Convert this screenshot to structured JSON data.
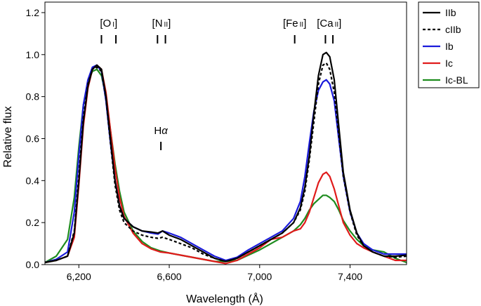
{
  "chart_data": {
    "type": "line",
    "title": "",
    "xlabel": "Wavelength (Å)",
    "ylabel": "Relative flux",
    "xlim": [
      6050,
      7650
    ],
    "ylim": [
      0,
      1.25
    ],
    "xticks": [
      6200,
      6600,
      7000,
      7400
    ],
    "xtick_labels": [
      "6,200",
      "6,600",
      "7,000",
      "7,400"
    ],
    "yticks": [
      0,
      0.2,
      0.4,
      0.6,
      0.8,
      1.0,
      1.2
    ],
    "ytick_labels": [
      "0.0",
      "0.2",
      "0.4",
      "0.6",
      "0.8",
      "1.0",
      "1.2"
    ],
    "legend_position": "top-right",
    "series": [
      {
        "name": "IIb",
        "color": "#000000",
        "dash": "solid",
        "points": [
          [
            6050,
            0.01
          ],
          [
            6100,
            0.02
          ],
          [
            6150,
            0.04
          ],
          [
            6180,
            0.15
          ],
          [
            6200,
            0.4
          ],
          [
            6220,
            0.68
          ],
          [
            6240,
            0.85
          ],
          [
            6260,
            0.93
          ],
          [
            6280,
            0.95
          ],
          [
            6300,
            0.93
          ],
          [
            6320,
            0.8
          ],
          [
            6340,
            0.6
          ],
          [
            6360,
            0.4
          ],
          [
            6380,
            0.28
          ],
          [
            6400,
            0.22
          ],
          [
            6440,
            0.18
          ],
          [
            6480,
            0.16
          ],
          [
            6520,
            0.155
          ],
          [
            6550,
            0.15
          ],
          [
            6570,
            0.16
          ],
          [
            6600,
            0.14
          ],
          [
            6650,
            0.12
          ],
          [
            6700,
            0.09
          ],
          [
            6750,
            0.06
          ],
          [
            6800,
            0.03
          ],
          [
            6850,
            0.015
          ],
          [
            6900,
            0.03
          ],
          [
            6950,
            0.06
          ],
          [
            7000,
            0.09
          ],
          [
            7050,
            0.12
          ],
          [
            7100,
            0.15
          ],
          [
            7150,
            0.2
          ],
          [
            7180,
            0.27
          ],
          [
            7200,
            0.37
          ],
          [
            7220,
            0.52
          ],
          [
            7240,
            0.72
          ],
          [
            7260,
            0.9
          ],
          [
            7280,
            1.0
          ],
          [
            7295,
            1.01
          ],
          [
            7310,
            0.99
          ],
          [
            7330,
            0.88
          ],
          [
            7350,
            0.66
          ],
          [
            7370,
            0.44
          ],
          [
            7400,
            0.26
          ],
          [
            7430,
            0.15
          ],
          [
            7460,
            0.09
          ],
          [
            7500,
            0.06
          ],
          [
            7550,
            0.04
          ],
          [
            7600,
            0.04
          ],
          [
            7650,
            0.045
          ]
        ]
      },
      {
        "name": "cIIb",
        "color": "#000000",
        "dash": "dotted",
        "points": [
          [
            6050,
            0.01
          ],
          [
            6100,
            0.02
          ],
          [
            6150,
            0.04
          ],
          [
            6180,
            0.16
          ],
          [
            6200,
            0.42
          ],
          [
            6220,
            0.7
          ],
          [
            6240,
            0.86
          ],
          [
            6260,
            0.93
          ],
          [
            6280,
            0.94
          ],
          [
            6300,
            0.92
          ],
          [
            6320,
            0.79
          ],
          [
            6340,
            0.58
          ],
          [
            6360,
            0.38
          ],
          [
            6380,
            0.26
          ],
          [
            6400,
            0.2
          ],
          [
            6440,
            0.16
          ],
          [
            6480,
            0.14
          ],
          [
            6520,
            0.13
          ],
          [
            6550,
            0.125
          ],
          [
            6570,
            0.13
          ],
          [
            6600,
            0.12
          ],
          [
            6650,
            0.1
          ],
          [
            6700,
            0.08
          ],
          [
            6750,
            0.05
          ],
          [
            6800,
            0.03
          ],
          [
            6850,
            0.015
          ],
          [
            6900,
            0.03
          ],
          [
            6950,
            0.06
          ],
          [
            7000,
            0.09
          ],
          [
            7050,
            0.12
          ],
          [
            7100,
            0.15
          ],
          [
            7150,
            0.2
          ],
          [
            7180,
            0.26
          ],
          [
            7200,
            0.35
          ],
          [
            7220,
            0.5
          ],
          [
            7240,
            0.68
          ],
          [
            7260,
            0.86
          ],
          [
            7280,
            0.95
          ],
          [
            7295,
            0.96
          ],
          [
            7310,
            0.93
          ],
          [
            7330,
            0.82
          ],
          [
            7350,
            0.62
          ],
          [
            7370,
            0.42
          ],
          [
            7400,
            0.25
          ],
          [
            7430,
            0.14
          ],
          [
            7460,
            0.09
          ],
          [
            7500,
            0.06
          ],
          [
            7550,
            0.04
          ],
          [
            7600,
            0.035
          ],
          [
            7650,
            0.04
          ]
        ]
      },
      {
        "name": "Ib",
        "color": "#1a1adb",
        "dash": "solid",
        "points": [
          [
            6050,
            0.01
          ],
          [
            6100,
            0.025
          ],
          [
            6150,
            0.06
          ],
          [
            6180,
            0.25
          ],
          [
            6200,
            0.52
          ],
          [
            6220,
            0.76
          ],
          [
            6240,
            0.88
          ],
          [
            6260,
            0.94
          ],
          [
            6280,
            0.95
          ],
          [
            6300,
            0.92
          ],
          [
            6320,
            0.78
          ],
          [
            6340,
            0.58
          ],
          [
            6360,
            0.4
          ],
          [
            6380,
            0.28
          ],
          [
            6400,
            0.22
          ],
          [
            6440,
            0.18
          ],
          [
            6480,
            0.16
          ],
          [
            6520,
            0.15
          ],
          [
            6550,
            0.145
          ],
          [
            6570,
            0.16
          ],
          [
            6600,
            0.15
          ],
          [
            6650,
            0.13
          ],
          [
            6700,
            0.1
          ],
          [
            6750,
            0.07
          ],
          [
            6800,
            0.04
          ],
          [
            6850,
            0.02
          ],
          [
            6900,
            0.035
          ],
          [
            6950,
            0.07
          ],
          [
            7000,
            0.1
          ],
          [
            7050,
            0.13
          ],
          [
            7100,
            0.16
          ],
          [
            7150,
            0.22
          ],
          [
            7180,
            0.3
          ],
          [
            7200,
            0.42
          ],
          [
            7220,
            0.58
          ],
          [
            7240,
            0.73
          ],
          [
            7260,
            0.83
          ],
          [
            7280,
            0.87
          ],
          [
            7295,
            0.88
          ],
          [
            7310,
            0.86
          ],
          [
            7330,
            0.78
          ],
          [
            7350,
            0.6
          ],
          [
            7370,
            0.42
          ],
          [
            7400,
            0.25
          ],
          [
            7430,
            0.15
          ],
          [
            7460,
            0.1
          ],
          [
            7500,
            0.07
          ],
          [
            7550,
            0.05
          ],
          [
            7600,
            0.05
          ],
          [
            7650,
            0.05
          ]
        ]
      },
      {
        "name": "Ic",
        "color": "#e01b1b",
        "dash": "solid",
        "points": [
          [
            6050,
            0.01
          ],
          [
            6100,
            0.02
          ],
          [
            6150,
            0.04
          ],
          [
            6180,
            0.13
          ],
          [
            6200,
            0.38
          ],
          [
            6220,
            0.66
          ],
          [
            6240,
            0.84
          ],
          [
            6260,
            0.93
          ],
          [
            6280,
            0.95
          ],
          [
            6300,
            0.93
          ],
          [
            6320,
            0.82
          ],
          [
            6340,
            0.64
          ],
          [
            6360,
            0.46
          ],
          [
            6380,
            0.32
          ],
          [
            6400,
            0.23
          ],
          [
            6440,
            0.15
          ],
          [
            6480,
            0.1
          ],
          [
            6520,
            0.075
          ],
          [
            6560,
            0.06
          ],
          [
            6600,
            0.055
          ],
          [
            6650,
            0.045
          ],
          [
            6700,
            0.035
          ],
          [
            6750,
            0.025
          ],
          [
            6800,
            0.015
          ],
          [
            6850,
            0.005
          ],
          [
            6900,
            0.02
          ],
          [
            6950,
            0.05
          ],
          [
            7000,
            0.08
          ],
          [
            7050,
            0.12
          ],
          [
            7100,
            0.13
          ],
          [
            7150,
            0.16
          ],
          [
            7180,
            0.17
          ],
          [
            7200,
            0.2
          ],
          [
            7220,
            0.25
          ],
          [
            7240,
            0.32
          ],
          [
            7260,
            0.39
          ],
          [
            7280,
            0.43
          ],
          [
            7295,
            0.44
          ],
          [
            7310,
            0.42
          ],
          [
            7330,
            0.36
          ],
          [
            7350,
            0.28
          ],
          [
            7370,
            0.2
          ],
          [
            7400,
            0.14
          ],
          [
            7430,
            0.1
          ],
          [
            7460,
            0.08
          ],
          [
            7500,
            0.06
          ],
          [
            7550,
            0.04
          ],
          [
            7600,
            0.02
          ],
          [
            7650,
            0.02
          ]
        ]
      },
      {
        "name": "Ic-BL",
        "color": "#1e8c1e",
        "dash": "solid",
        "points": [
          [
            6050,
            0.01
          ],
          [
            6100,
            0.04
          ],
          [
            6150,
            0.12
          ],
          [
            6180,
            0.32
          ],
          [
            6200,
            0.56
          ],
          [
            6220,
            0.76
          ],
          [
            6240,
            0.87
          ],
          [
            6260,
            0.92
          ],
          [
            6280,
            0.93
          ],
          [
            6300,
            0.9
          ],
          [
            6320,
            0.8
          ],
          [
            6340,
            0.64
          ],
          [
            6360,
            0.48
          ],
          [
            6380,
            0.35
          ],
          [
            6400,
            0.25
          ],
          [
            6440,
            0.16
          ],
          [
            6480,
            0.11
          ],
          [
            6520,
            0.08
          ],
          [
            6560,
            0.065
          ],
          [
            6600,
            0.055
          ],
          [
            6650,
            0.045
          ],
          [
            6700,
            0.035
          ],
          [
            6750,
            0.025
          ],
          [
            6800,
            0.015
          ],
          [
            6850,
            0.015
          ],
          [
            6900,
            0.02
          ],
          [
            6950,
            0.045
          ],
          [
            7000,
            0.07
          ],
          [
            7050,
            0.1
          ],
          [
            7100,
            0.13
          ],
          [
            7150,
            0.16
          ],
          [
            7180,
            0.19
          ],
          [
            7200,
            0.22
          ],
          [
            7220,
            0.26
          ],
          [
            7240,
            0.29
          ],
          [
            7260,
            0.31
          ],
          [
            7280,
            0.33
          ],
          [
            7295,
            0.33
          ],
          [
            7310,
            0.32
          ],
          [
            7330,
            0.3
          ],
          [
            7350,
            0.26
          ],
          [
            7370,
            0.21
          ],
          [
            7400,
            0.16
          ],
          [
            7430,
            0.12
          ],
          [
            7460,
            0.09
          ],
          [
            7500,
            0.07
          ],
          [
            7550,
            0.06
          ],
          [
            7600,
            0.03
          ],
          [
            7650,
            0.01
          ]
        ]
      }
    ],
    "line_markers": [
      {
        "label": "[O I]",
        "label_main": "[O",
        "label_ion": "I",
        "label_close": "]",
        "lines": [
          6300,
          6364
        ],
        "row": "top"
      },
      {
        "label": "[N II]",
        "label_main": "[N",
        "label_ion": "II",
        "label_close": "]",
        "lines": [
          6548,
          6583
        ],
        "row": "top"
      },
      {
        "label": "[Fe II]",
        "label_main": "[Fe",
        "label_ion": "II",
        "label_close": "]",
        "lines": [
          7155
        ],
        "row": "top"
      },
      {
        "label": "[Ca II]",
        "label_main": "[Ca",
        "label_ion": "II",
        "label_close": "]",
        "lines": [
          7291,
          7324
        ],
        "row": "top"
      },
      {
        "label": "Hα",
        "label_main": "H",
        "label_greek": "α",
        "lines": [
          6563
        ],
        "row": "middle"
      }
    ]
  }
}
